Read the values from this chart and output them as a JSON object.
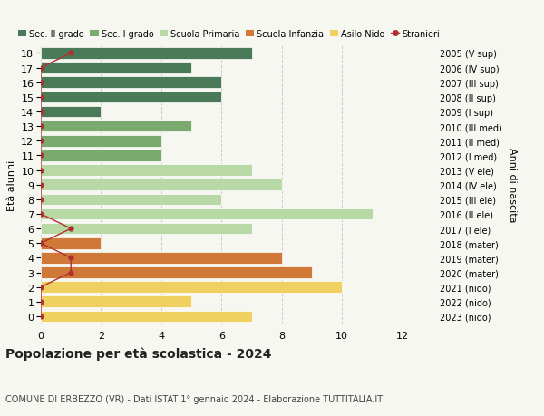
{
  "ages": [
    18,
    17,
    16,
    15,
    14,
    13,
    12,
    11,
    10,
    9,
    8,
    7,
    6,
    5,
    4,
    3,
    2,
    1,
    0
  ],
  "right_labels": [
    "2005 (V sup)",
    "2006 (IV sup)",
    "2007 (III sup)",
    "2008 (II sup)",
    "2009 (I sup)",
    "2010 (III med)",
    "2011 (II med)",
    "2012 (I med)",
    "2013 (V ele)",
    "2014 (IV ele)",
    "2015 (III ele)",
    "2016 (II ele)",
    "2017 (I ele)",
    "2018 (mater)",
    "2019 (mater)",
    "2020 (mater)",
    "2021 (nido)",
    "2022 (nido)",
    "2023 (nido)"
  ],
  "values": [
    7,
    5,
    6,
    6,
    2,
    5,
    4,
    4,
    7,
    8,
    6,
    11,
    7,
    2,
    8,
    9,
    10,
    5,
    7
  ],
  "colors": [
    "#4a7a58",
    "#4a7a58",
    "#4a7a58",
    "#4a7a58",
    "#4a7a58",
    "#7aaa6e",
    "#7aaa6e",
    "#7aaa6e",
    "#b8d9a5",
    "#b8d9a5",
    "#b8d9a5",
    "#b8d9a5",
    "#b8d9a5",
    "#d07838",
    "#d07838",
    "#d07838",
    "#f0d060",
    "#f0d060",
    "#f0d060"
  ],
  "stranieri_values": [
    1,
    0,
    0,
    0,
    0,
    0,
    0,
    0,
    0,
    0,
    0,
    0,
    1,
    0,
    1,
    1,
    0,
    0,
    0
  ],
  "legend_labels": [
    "Sec. II grado",
    "Sec. I grado",
    "Scuola Primaria",
    "Scuola Infanzia",
    "Asilo Nido",
    "Stranieri"
  ],
  "legend_colors": [
    "#4a7a58",
    "#7aaa6e",
    "#b8d9a5",
    "#d07838",
    "#f0d060",
    "#b03030"
  ],
  "title": "Popolazione per età scolastica - 2024",
  "subtitle": "COMUNE DI ERBEZZO (VR) - Dati ISTAT 1° gennaio 2024 - Elaborazione TUTTITALIA.IT",
  "right_axis_label": "Anni di nascita",
  "ylabel": "Età alunni",
  "xlim": [
    0,
    13
  ],
  "xticks": [
    0,
    2,
    4,
    6,
    8,
    10,
    12
  ],
  "bg_color": "#f7f7f2",
  "plot_bg_color": "#f7f7f2"
}
